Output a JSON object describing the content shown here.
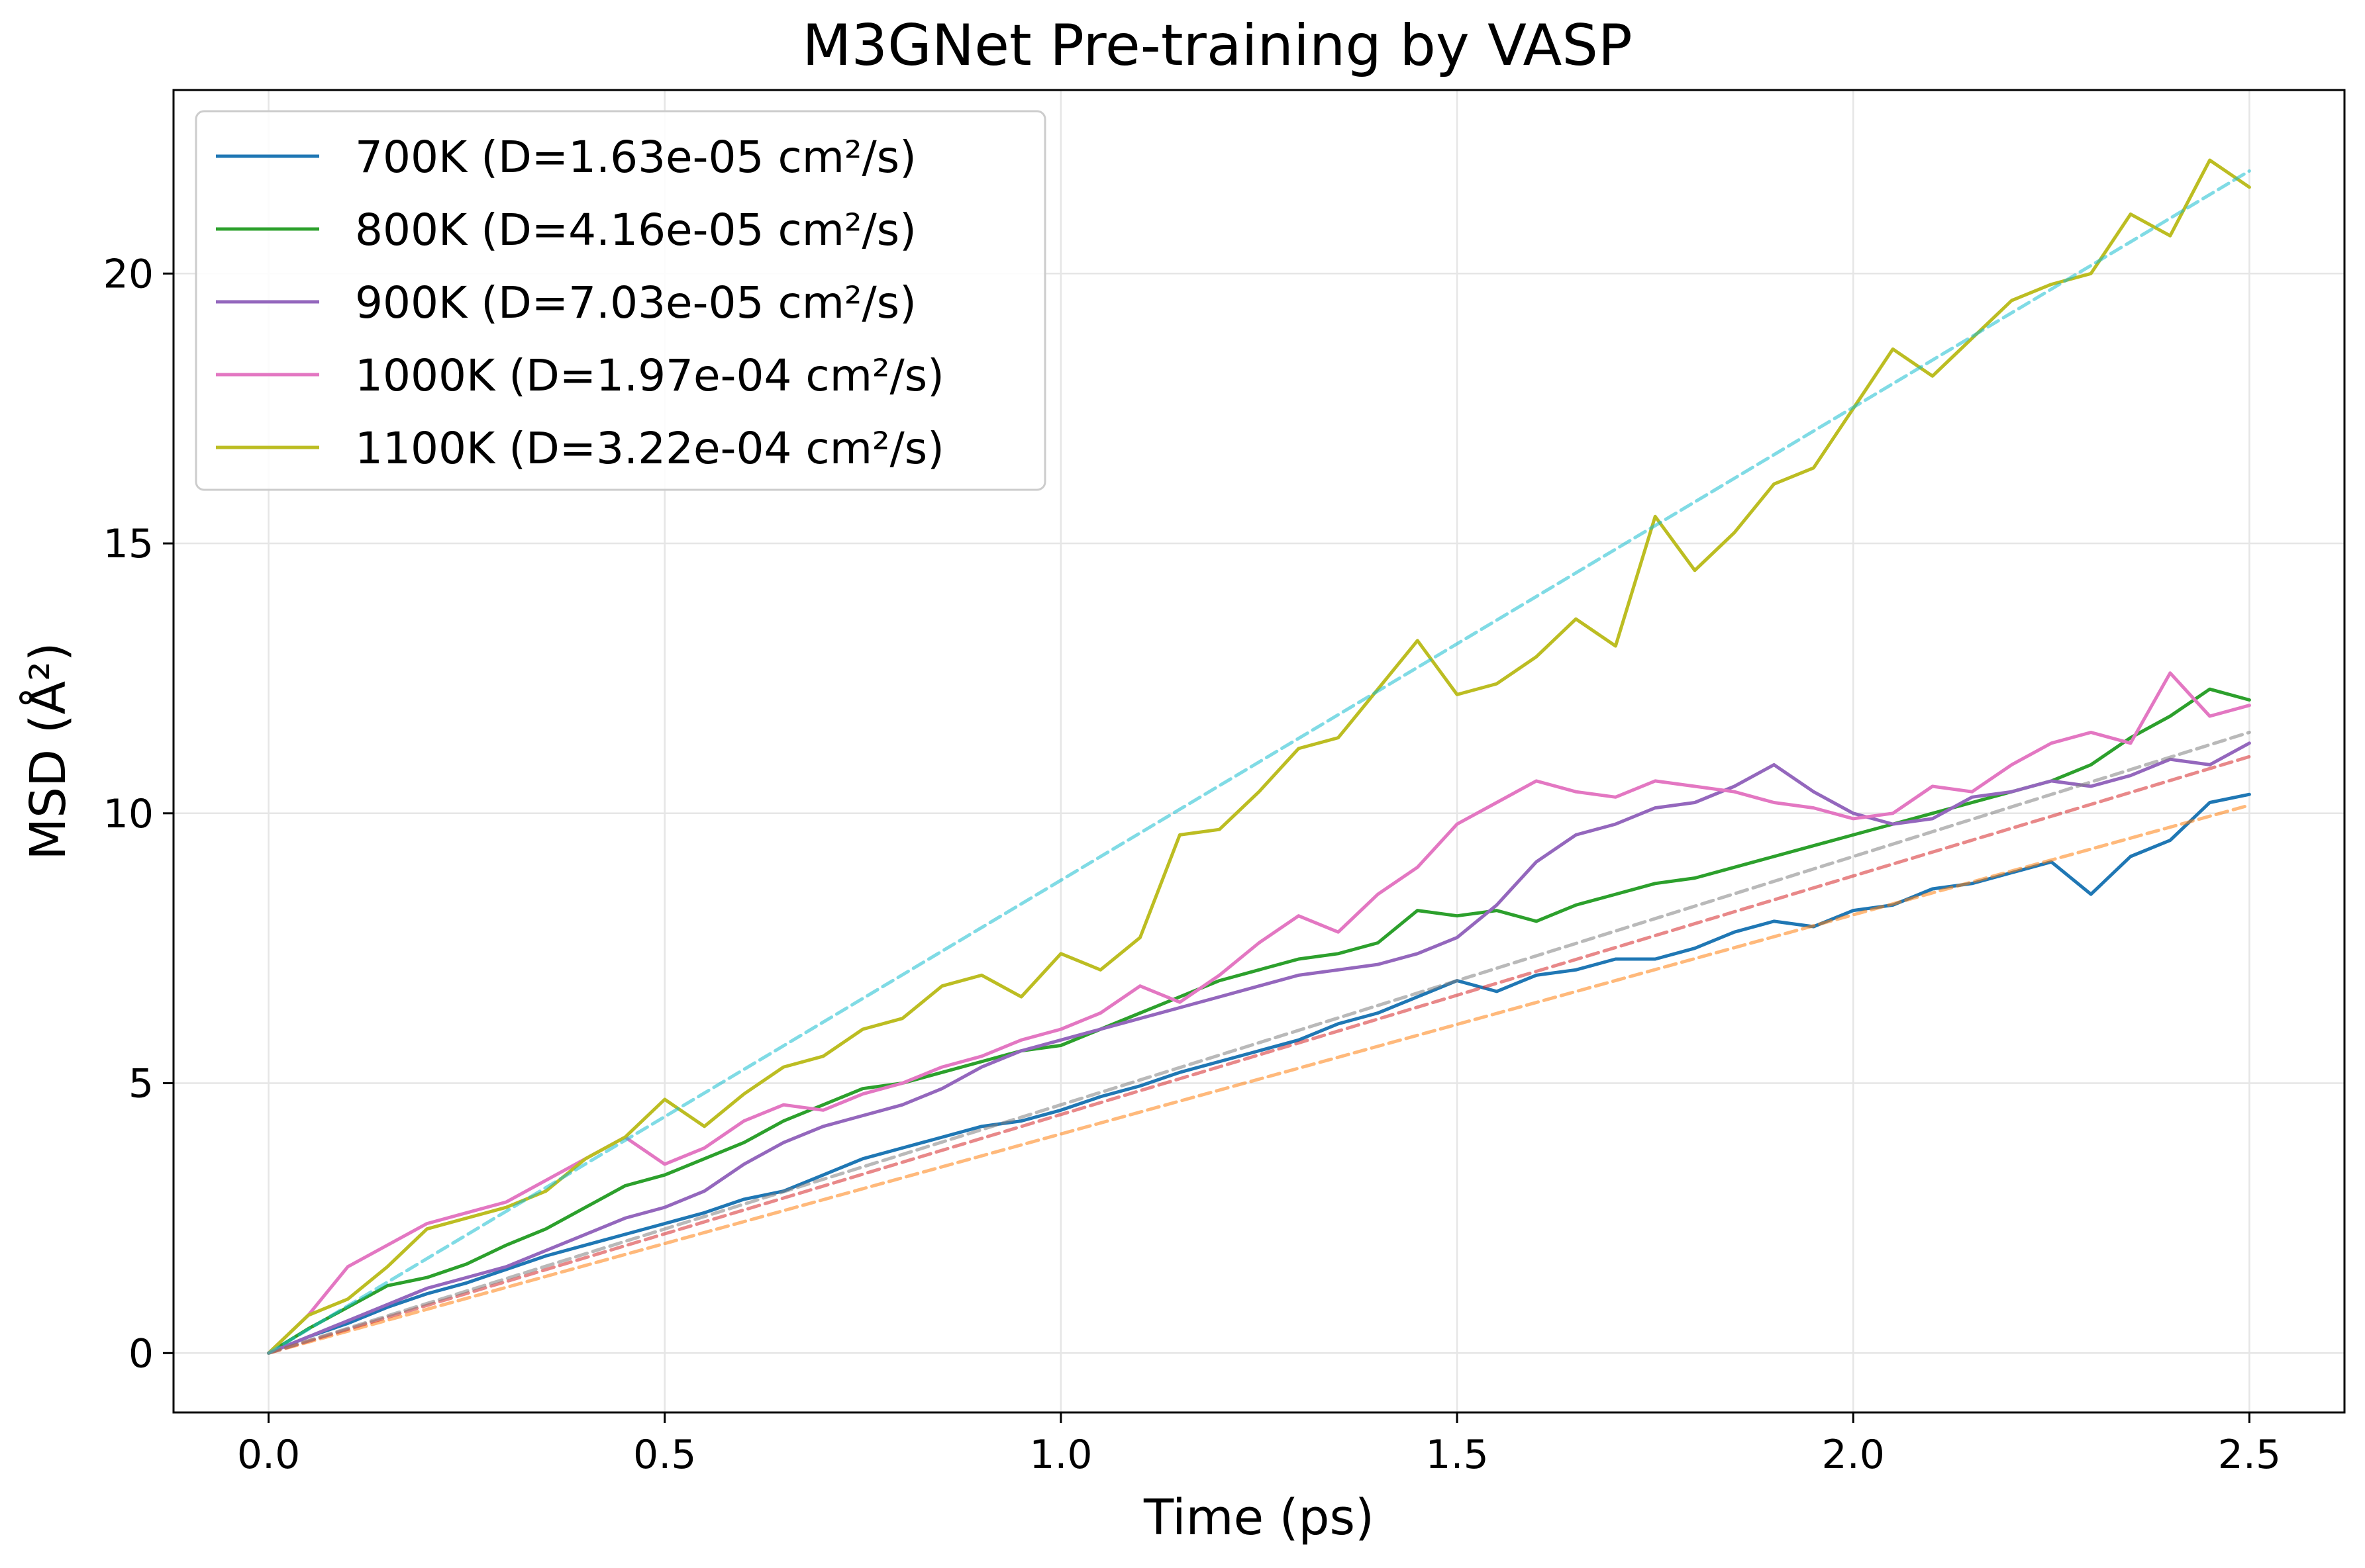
{
  "chart_data": {
    "type": "line",
    "title": "M3GNet Pre-training by VASP",
    "xlabel": "Time (ps)",
    "ylabel": "MSD (Å²)",
    "xlim": [
      -0.12,
      2.62
    ],
    "ylim": [
      -1.1,
      23.4
    ],
    "xticks": [
      0.0,
      0.5,
      1.0,
      1.5,
      2.0,
      2.5
    ],
    "xtick_labels": [
      "0.0",
      "0.5",
      "1.0",
      "1.5",
      "2.0",
      "2.5"
    ],
    "yticks": [
      0,
      5,
      10,
      15,
      20
    ],
    "ytick_labels": [
      "0",
      "5",
      "10",
      "15",
      "20"
    ],
    "grid": true,
    "legend_position": "top-left",
    "series": [
      {
        "name": "700K (D=1.63e-05 cm²/s)",
        "color": "#1f77b4",
        "x": [
          0.0,
          0.05,
          0.1,
          0.15,
          0.2,
          0.25,
          0.3,
          0.35,
          0.4,
          0.45,
          0.5,
          0.55,
          0.6,
          0.65,
          0.7,
          0.75,
          0.8,
          0.85,
          0.9,
          0.95,
          1.0,
          1.05,
          1.1,
          1.15,
          1.2,
          1.25,
          1.3,
          1.35,
          1.4,
          1.45,
          1.5,
          1.55,
          1.6,
          1.65,
          1.7,
          1.75,
          1.8,
          1.85,
          1.9,
          1.95,
          2.0,
          2.05,
          2.1,
          2.15,
          2.2,
          2.25,
          2.3,
          2.35,
          2.4,
          2.45,
          2.5
        ],
        "y": [
          0.0,
          0.3,
          0.55,
          0.85,
          1.1,
          1.3,
          1.55,
          1.8,
          2.0,
          2.2,
          2.4,
          2.6,
          2.85,
          3.0,
          3.3,
          3.6,
          3.8,
          4.0,
          4.2,
          4.3,
          4.5,
          4.75,
          4.95,
          5.2,
          5.4,
          5.6,
          5.8,
          6.1,
          6.3,
          6.6,
          6.9,
          6.7,
          7.0,
          7.1,
          7.3,
          7.3,
          7.5,
          7.8,
          8.0,
          7.9,
          8.2,
          8.3,
          8.6,
          8.7,
          8.9,
          9.1,
          8.5,
          9.2,
          9.5,
          10.2,
          10.35
        ]
      },
      {
        "name": "800K (D=4.16e-05 cm²/s)",
        "color": "#2ca02c",
        "x": [
          0.0,
          0.05,
          0.1,
          0.15,
          0.2,
          0.25,
          0.3,
          0.35,
          0.4,
          0.45,
          0.5,
          0.55,
          0.6,
          0.65,
          0.7,
          0.75,
          0.8,
          0.85,
          0.9,
          0.95,
          1.0,
          1.05,
          1.1,
          1.15,
          1.2,
          1.25,
          1.3,
          1.35,
          1.4,
          1.45,
          1.5,
          1.55,
          1.6,
          1.65,
          1.7,
          1.75,
          1.8,
          1.85,
          1.9,
          1.95,
          2.0,
          2.05,
          2.1,
          2.15,
          2.2,
          2.25,
          2.3,
          2.35,
          2.4,
          2.45,
          2.5
        ],
        "y": [
          0.0,
          0.45,
          0.85,
          1.25,
          1.4,
          1.65,
          2.0,
          2.3,
          2.7,
          3.1,
          3.3,
          3.6,
          3.9,
          4.3,
          4.6,
          4.9,
          5.0,
          5.2,
          5.4,
          5.6,
          5.7,
          6.0,
          6.3,
          6.6,
          6.9,
          7.1,
          7.3,
          7.4,
          7.6,
          8.2,
          8.1,
          8.2,
          8.0,
          8.3,
          8.5,
          8.7,
          8.8,
          9.0,
          9.2,
          9.4,
          9.6,
          9.8,
          10.0,
          10.2,
          10.4,
          10.6,
          10.9,
          11.4,
          11.8,
          12.3,
          12.1
        ]
      },
      {
        "name": "900K (D=7.03e-05 cm²/s)",
        "color": "#9467bd",
        "x": [
          0.0,
          0.05,
          0.1,
          0.15,
          0.2,
          0.25,
          0.3,
          0.35,
          0.4,
          0.45,
          0.5,
          0.55,
          0.6,
          0.65,
          0.7,
          0.75,
          0.8,
          0.85,
          0.9,
          0.95,
          1.0,
          1.05,
          1.1,
          1.15,
          1.2,
          1.25,
          1.3,
          1.35,
          1.4,
          1.45,
          1.5,
          1.55,
          1.6,
          1.65,
          1.7,
          1.75,
          1.8,
          1.85,
          1.9,
          1.95,
          2.0,
          2.05,
          2.1,
          2.15,
          2.2,
          2.25,
          2.3,
          2.35,
          2.4,
          2.45,
          2.5
        ],
        "y": [
          0.0,
          0.3,
          0.6,
          0.9,
          1.2,
          1.4,
          1.6,
          1.9,
          2.2,
          2.5,
          2.7,
          3.0,
          3.5,
          3.9,
          4.2,
          4.4,
          4.6,
          4.9,
          5.3,
          5.6,
          5.8,
          6.0,
          6.2,
          6.4,
          6.6,
          6.8,
          7.0,
          7.1,
          7.2,
          7.4,
          7.7,
          8.3,
          9.1,
          9.6,
          9.8,
          10.1,
          10.2,
          10.5,
          10.9,
          10.4,
          10.0,
          9.8,
          9.9,
          10.3,
          10.4,
          10.6,
          10.5,
          10.7,
          11.0,
          10.9,
          11.3
        ]
      },
      {
        "name": "1000K (D=1.97e-04 cm²/s)",
        "color": "#e377c2",
        "x": [
          0.0,
          0.05,
          0.1,
          0.15,
          0.2,
          0.25,
          0.3,
          0.35,
          0.4,
          0.45,
          0.5,
          0.55,
          0.6,
          0.65,
          0.7,
          0.75,
          0.8,
          0.85,
          0.9,
          0.95,
          1.0,
          1.05,
          1.1,
          1.15,
          1.2,
          1.25,
          1.3,
          1.35,
          1.4,
          1.45,
          1.5,
          1.55,
          1.6,
          1.65,
          1.7,
          1.75,
          1.8,
          1.85,
          1.9,
          1.95,
          2.0,
          2.05,
          2.1,
          2.15,
          2.2,
          2.25,
          2.3,
          2.35,
          2.4,
          2.45,
          2.5
        ],
        "y": [
          0.0,
          0.7,
          1.6,
          2.0,
          2.4,
          2.6,
          2.8,
          3.2,
          3.6,
          4.0,
          3.5,
          3.8,
          4.3,
          4.6,
          4.5,
          4.8,
          5.0,
          5.3,
          5.5,
          5.8,
          6.0,
          6.3,
          6.8,
          6.5,
          7.0,
          7.6,
          8.1,
          7.8,
          8.5,
          9.0,
          9.8,
          10.2,
          10.6,
          10.4,
          10.3,
          10.6,
          10.5,
          10.4,
          10.2,
          10.1,
          9.9,
          10.0,
          10.5,
          10.4,
          10.9,
          11.3,
          11.5,
          11.3,
          12.6,
          11.8,
          12.0
        ]
      },
      {
        "name": "1100K (D=3.22e-04 cm²/s)",
        "color": "#bcbd22",
        "x": [
          0.0,
          0.05,
          0.1,
          0.15,
          0.2,
          0.25,
          0.3,
          0.35,
          0.4,
          0.45,
          0.5,
          0.55,
          0.6,
          0.65,
          0.7,
          0.75,
          0.8,
          0.85,
          0.9,
          0.95,
          1.0,
          1.05,
          1.1,
          1.15,
          1.2,
          1.25,
          1.3,
          1.35,
          1.4,
          1.45,
          1.5,
          1.55,
          1.6,
          1.65,
          1.7,
          1.75,
          1.8,
          1.85,
          1.9,
          1.95,
          2.0,
          2.05,
          2.1,
          2.15,
          2.2,
          2.25,
          2.3,
          2.35,
          2.4,
          2.45,
          2.5
        ],
        "y": [
          0.0,
          0.7,
          1.0,
          1.6,
          2.3,
          2.5,
          2.7,
          3.0,
          3.6,
          4.0,
          4.7,
          4.2,
          4.8,
          5.3,
          5.5,
          6.0,
          6.2,
          6.8,
          7.0,
          6.6,
          7.4,
          7.1,
          7.7,
          9.6,
          9.7,
          10.4,
          11.2,
          11.4,
          12.3,
          13.2,
          12.2,
          12.4,
          12.9,
          13.6,
          13.1,
          15.5,
          14.5,
          15.2,
          16.1,
          16.4,
          17.5,
          18.6,
          18.1,
          18.8,
          19.5,
          19.8,
          20.0,
          21.1,
          20.7,
          22.1,
          21.6
        ]
      },
      {
        "color": "#ff7f0e",
        "x": [
          0.0,
          2.5
        ],
        "y": [
          0.0,
          10.15
        ]
      },
      {
        "color": "#d62728",
        "x": [
          0.0,
          2.5
        ],
        "y": [
          0.0,
          11.05
        ]
      },
      {
        "color": "#7f7f7f",
        "x": [
          0.0,
          2.5
        ],
        "y": [
          0.0,
          11.5
        ]
      },
      {
        "color": "#17becf",
        "x": [
          0.0,
          2.5
        ],
        "y": [
          0.0,
          21.9
        ]
      }
    ]
  }
}
